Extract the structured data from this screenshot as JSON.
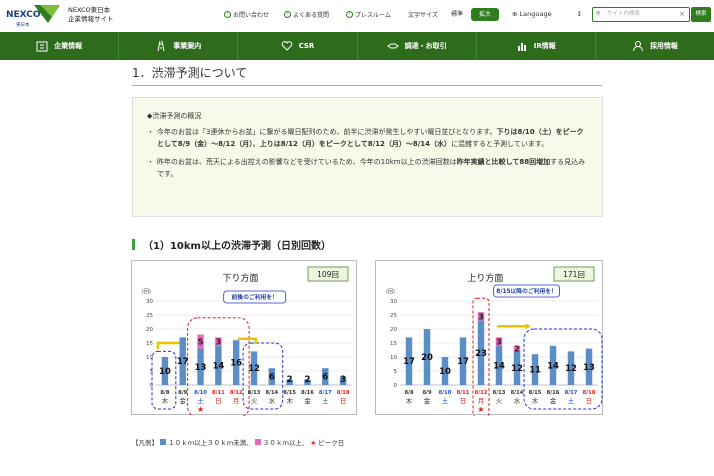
{
  "header": {
    "logo_text": "NEXCO",
    "logo_sub": "東日本",
    "site_name_1": "NEXCO東日本",
    "site_name_2": "企業情報サイト",
    "util_links": [
      "お問い合わせ",
      "よくある質問",
      "プレスルーム"
    ],
    "font_size_label": "文字サイズ",
    "font_std": "標準",
    "font_big": "拡大",
    "language": "Language",
    "search_placeholder": "サイト内検索",
    "search_button": "検索"
  },
  "nav": {
    "items": [
      "企業情報",
      "事業案内",
      "CSR",
      "調達・お取引",
      "IR情報",
      "採用情報"
    ]
  },
  "main": {
    "section_title": "1．渋滞予測について",
    "overview_heading": "◆渋滞予測の概況",
    "para1_a": "今年のお盆は「3連休からお盆」に繋がる曜日配列のため、前半に渋滞が発生しやすい曜日並びとなります。",
    "para1_b": "下りは8/10（土）をピークとして8/9（金）～8/12（月）、上りは8/12（月）をピークとして8/12（月）～8/14（水）",
    "para1_c": "に混雑すると予測しています。",
    "para2_a": "昨年のお盆は、荒天による出控えの影響などを受けているため、今年の10km以上の渋滞回数は",
    "para2_b": "昨年実績と比較して88回増加",
    "para2_c": "する見込みです。",
    "subheading": "（1）10km以上の渋滞予測（日別回数）"
  },
  "chart_data": [
    {
      "type": "bar",
      "title": "下り方面",
      "total_label": "109回",
      "ylabel": "(回)",
      "ylim": [
        0,
        30
      ],
      "yticks": [
        0,
        5,
        10,
        15,
        20,
        25,
        30
      ],
      "grid": true,
      "categories": [
        "8/8",
        "8/9",
        "8/10",
        "8/11",
        "8/12",
        "8/13",
        "8/14",
        "8/15",
        "8/16",
        "8/17",
        "8/18"
      ],
      "weekdays": [
        "木",
        "金",
        "土",
        "日",
        "月",
        "火",
        "水",
        "木",
        "金",
        "土",
        "日"
      ],
      "date_colors": [
        "#333333",
        "#333333",
        "#1f4fbf",
        "#e0201c",
        "#e0201c",
        "#333333",
        "#333333",
        "#333333",
        "#333333",
        "#1f4fbf",
        "#e0201c"
      ],
      "series": [
        {
          "values": [
            10,
            17,
            13,
            14,
            16,
            12,
            6,
            2,
            2,
            6,
            3
          ]
        },
        {
          "values": [
            0,
            0,
            5,
            3,
            0,
            0,
            0,
            0,
            0,
            0,
            0
          ]
        }
      ],
      "peak_index": 2,
      "callout": "前後のご利用を！",
      "colors": {
        "base": "#5b8ec6",
        "over30": "#e864b8",
        "peak": "#e0201c"
      }
    },
    {
      "type": "bar",
      "title": "上り方面",
      "total_label": "171回",
      "ylabel": "(回)",
      "ylim": [
        0,
        30
      ],
      "yticks": [
        0,
        5,
        10,
        15,
        20,
        25,
        30
      ],
      "grid": true,
      "categories": [
        "8/8",
        "8/9",
        "8/10",
        "8/11",
        "8/12",
        "8/13",
        "8/14",
        "8/15",
        "8/16",
        "8/17",
        "8/18"
      ],
      "weekdays": [
        "木",
        "金",
        "土",
        "日",
        "月",
        "火",
        "水",
        "木",
        "金",
        "土",
        "日"
      ],
      "date_colors": [
        "#333333",
        "#333333",
        "#1f4fbf",
        "#e0201c",
        "#e0201c",
        "#333333",
        "#333333",
        "#333333",
        "#333333",
        "#1f4fbf",
        "#e0201c"
      ],
      "series": [
        {
          "values": [
            17,
            20,
            10,
            17,
            23,
            14,
            12,
            11,
            14,
            12,
            13
          ]
        },
        {
          "values": [
            0,
            0,
            0,
            0,
            3,
            3,
            2,
            0,
            0,
            0,
            0
          ]
        }
      ],
      "peak_index": 4,
      "callout": "8/15以降のご利用を！",
      "colors": {
        "base": "#5b8ec6",
        "over30": "#e864b8",
        "peak": "#e0201c"
      }
    }
  ],
  "legend": {
    "label": "【凡例】",
    "item1": "１０ｋｍ以上３０ｋｍ未満、",
    "item2": "３０ｋｍ以上、",
    "item3": "ピーク日"
  }
}
